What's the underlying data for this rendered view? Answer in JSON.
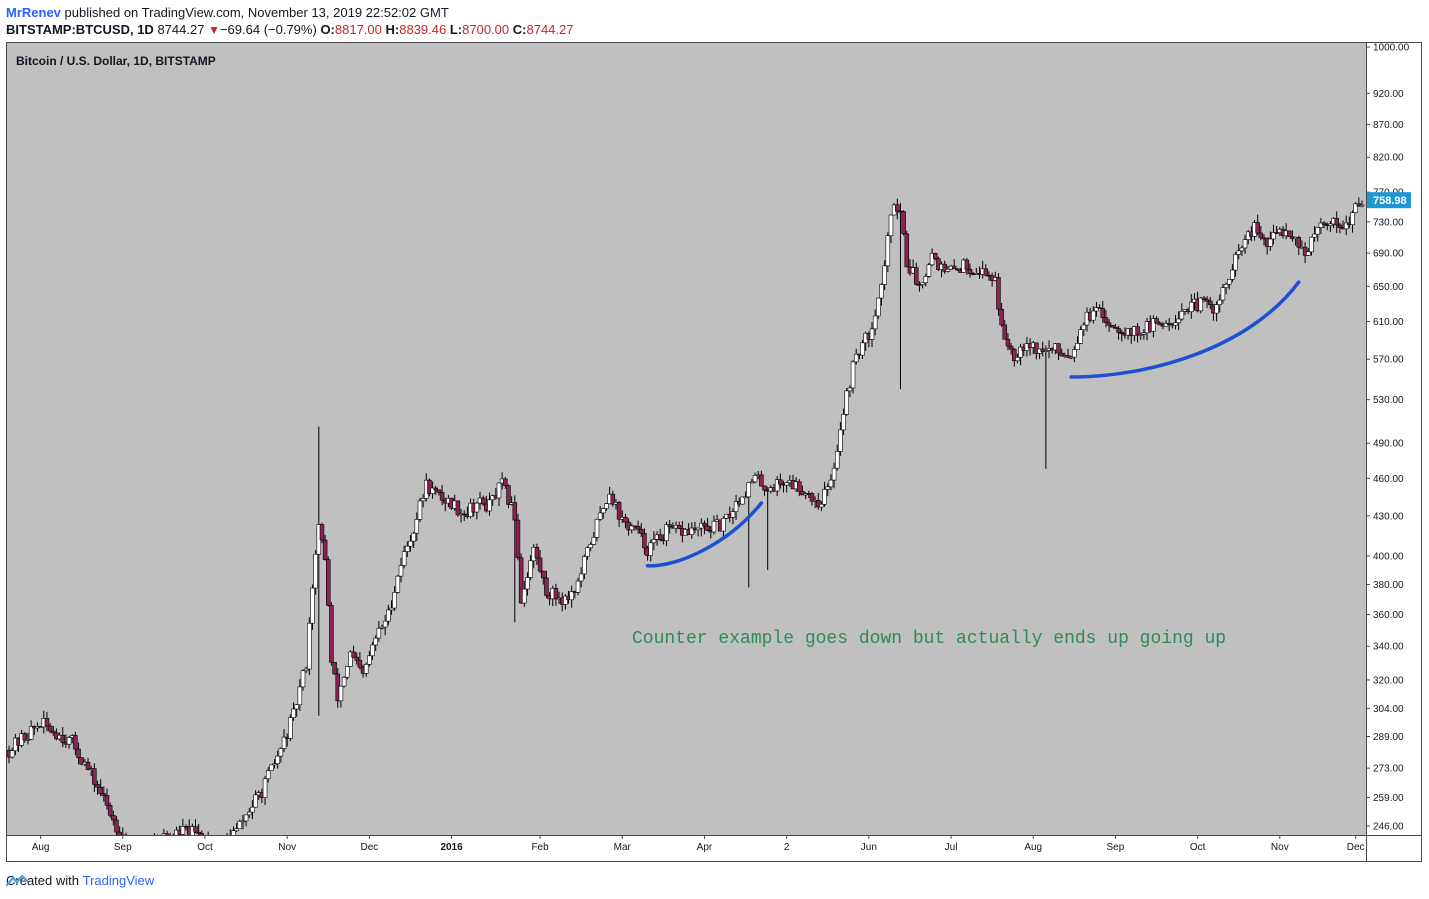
{
  "header": {
    "author": "MrRenev",
    "published_text": "published on TradingView.com, November 13, 2019 22:52:02 GMT",
    "symbol": "BITSTAMP:BTCUSD, 1D",
    "last_price": "8744.27",
    "change": "−69.64 (−0.79%)",
    "o_label": "O:",
    "o_value": "8817.00",
    "h_label": "H:",
    "h_value": "8839.46",
    "l_label": "L:",
    "l_value": "8700.00",
    "c_label": "C:",
    "c_value": "8744.27"
  },
  "footer": {
    "created_with": "Created with",
    "brand": "TradingView"
  },
  "colors": {
    "plot_bg": "#c0c0c0",
    "up": "#000000",
    "down": "#8b2252",
    "curve": "#1e50d2",
    "annotation": "#2e8b57",
    "price_tag": "#1f96d6"
  },
  "chart_data": {
    "type": "candlestick",
    "title": "Bitcoin / U.S. Dollar, 1D, BITSTAMP",
    "scale": "log",
    "ylim": [
      240,
      1000
    ],
    "y_ticks": [
      1000,
      920,
      870,
      820,
      770,
      730,
      690,
      650,
      610,
      570,
      530,
      490,
      460,
      430,
      400,
      380,
      360,
      340,
      320,
      304,
      289,
      273,
      259,
      246
    ],
    "y_tick_labels": [
      "1000.00",
      "920.00",
      "870.00",
      "820.00",
      "770.00",
      "730.00",
      "690.00",
      "650.00",
      "610.00",
      "570.00",
      "530.00",
      "490.00",
      "460.00",
      "430.00",
      "400.00",
      "380.00",
      "360.00",
      "340.00",
      "320.00",
      "304.00",
      "289.00",
      "273.00",
      "259.00",
      "246.00"
    ],
    "x_labels": [
      "Aug",
      "Sep",
      "Oct",
      "Nov",
      "Dec",
      "2016",
      "Feb",
      "Mar",
      "Apr",
      "2",
      "Jun",
      "Jul",
      "Aug",
      "Sep",
      "Oct",
      "Nov",
      "Dec"
    ],
    "last_price_label": "758.98",
    "last_price": 758.98,
    "annotation": "Counter example goes down but actually ends up going up",
    "price_path": [
      [
        0,
        282
      ],
      [
        5,
        296
      ],
      [
        10,
        286
      ],
      [
        14,
        264
      ],
      [
        17,
        246
      ],
      [
        20,
        235
      ],
      [
        23,
        240
      ],
      [
        28,
        244
      ],
      [
        33,
        238
      ],
      [
        36,
        244
      ],
      [
        40,
        262
      ],
      [
        43,
        282
      ],
      [
        45,
        300
      ],
      [
        47,
        330
      ],
      [
        48,
        380
      ],
      [
        49,
        420
      ],
      [
        50,
        400
      ],
      [
        51,
        330
      ],
      [
        52,
        310
      ],
      [
        54,
        335
      ],
      [
        56,
        322
      ],
      [
        58,
        345
      ],
      [
        60,
        360
      ],
      [
        62,
        395
      ],
      [
        64,
        420
      ],
      [
        66,
        455
      ],
      [
        68,
        445
      ],
      [
        70,
        440
      ],
      [
        72,
        432
      ],
      [
        74,
        440
      ],
      [
        76,
        438
      ],
      [
        78,
        455
      ],
      [
        80,
        430
      ],
      [
        81,
        370
      ],
      [
        83,
        405
      ],
      [
        85,
        375
      ],
      [
        88,
        370
      ],
      [
        90,
        380
      ],
      [
        92,
        410
      ],
      [
        95,
        450
      ],
      [
        97,
        425
      ],
      [
        99,
        420
      ],
      [
        101,
        405
      ],
      [
        104,
        418
      ],
      [
        107,
        418
      ],
      [
        110,
        420
      ],
      [
        113,
        423
      ],
      [
        115,
        440
      ],
      [
        118,
        460
      ],
      [
        120,
        452
      ],
      [
        123,
        458
      ],
      [
        126,
        450
      ],
      [
        128,
        440
      ],
      [
        130,
        455
      ],
      [
        132,
        520
      ],
      [
        134,
        575
      ],
      [
        136,
        595
      ],
      [
        138,
        650
      ],
      [
        140,
        760
      ],
      [
        141,
        745
      ],
      [
        142,
        680
      ],
      [
        144,
        650
      ],
      [
        146,
        690
      ],
      [
        148,
        665
      ],
      [
        151,
        675
      ],
      [
        153,
        670
      ],
      [
        156,
        660
      ],
      [
        157,
        600
      ],
      [
        159,
        575
      ],
      [
        161,
        590
      ],
      [
        163,
        578
      ],
      [
        165,
        580
      ],
      [
        168,
        575
      ],
      [
        170,
        612
      ],
      [
        172,
        620
      ],
      [
        175,
        605
      ],
      [
        178,
        598
      ],
      [
        181,
        606
      ],
      [
        184,
        612
      ],
      [
        186,
        625
      ],
      [
        189,
        630
      ],
      [
        191,
        625
      ],
      [
        193,
        660
      ],
      [
        195,
        700
      ],
      [
        197,
        720
      ],
      [
        199,
        700
      ],
      [
        201,
        720
      ],
      [
        203,
        715
      ],
      [
        205,
        690
      ],
      [
        208,
        730
      ],
      [
        210,
        730
      ],
      [
        212,
        725
      ],
      [
        213,
        750
      ],
      [
        214,
        759
      ]
    ],
    "spikes": [
      {
        "day": 49,
        "high": 505,
        "low": 300
      },
      {
        "day": 80,
        "low": 355
      },
      {
        "day": 117,
        "low": 378
      },
      {
        "day": 120,
        "low": 390
      },
      {
        "day": 141,
        "low": 540
      },
      {
        "day": 164,
        "low": 468
      }
    ],
    "curves": [
      [
        [
          101,
          393
        ],
        [
          106,
          392
        ],
        [
          114,
          410
        ],
        [
          119,
          440
        ]
      ],
      [
        [
          168,
          552
        ],
        [
          180,
          552
        ],
        [
          196,
          580
        ],
        [
          204,
          655
        ]
      ]
    ]
  }
}
